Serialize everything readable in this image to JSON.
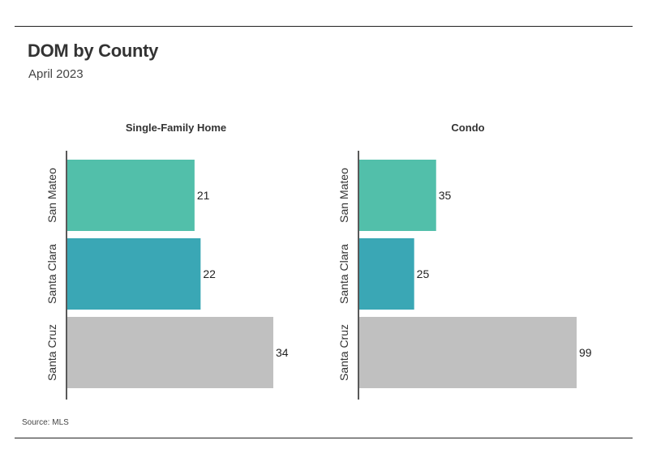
{
  "title": "DOM by County",
  "subtitle": "April 2023",
  "source": "Source: MLS",
  "colors": {
    "San Mateo": "#52bfaa",
    "Santa Clara": "#3aa7b5",
    "Santa Cruz": "#c0c0c0",
    "axis": "#222222"
  },
  "chart_data": [
    {
      "type": "bar",
      "orientation": "horizontal",
      "title": "Single-Family Home",
      "categories": [
        "San Mateo",
        "Santa Clara",
        "Santa Cruz"
      ],
      "values": [
        21,
        22,
        34
      ],
      "xlim": [
        0,
        34
      ],
      "grid": false
    },
    {
      "type": "bar",
      "orientation": "horizontal",
      "title": "Condo",
      "categories": [
        "San Mateo",
        "Santa Clara",
        "Santa Cruz"
      ],
      "values": [
        35,
        25,
        99
      ],
      "xlim": [
        0,
        99
      ],
      "grid": false
    }
  ]
}
